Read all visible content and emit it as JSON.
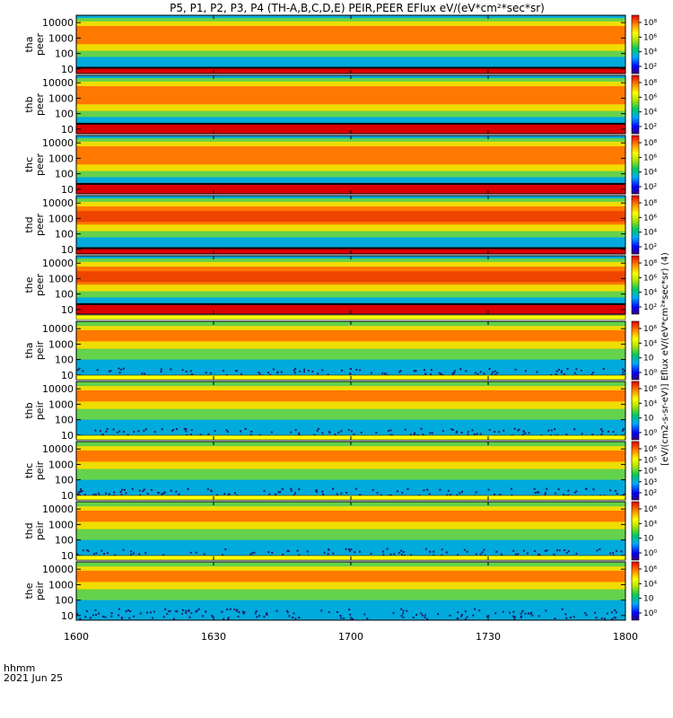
{
  "title": "P5, P1, P2, P3, P4 (TH-A,B,C,D,E) PEIR,PEER EFlux eV/(eV*cm²*sec*sr)",
  "time_axis": {
    "label": "hhmm",
    "date": "2021 Jun 25",
    "ticks": [
      "1600",
      "1630",
      "1700",
      "1730",
      "1800"
    ]
  },
  "colorbar_label": "[eV/(cm2-s-sr-eV)] Eflux eV/(eV*cm²*sec*sr) (4)",
  "colors": {
    "band_high": "#dc0000",
    "band_mid": "#ff7800",
    "band_lowmid": "#f0dc00",
    "band_low": "#64d24b",
    "band_bg": "#00aadc",
    "noise": "#1e1e64"
  },
  "chart_data": [
    {
      "type": "heatmap",
      "probe": "tha",
      "species": "peer",
      "ylabel": [
        "tha",
        "peer"
      ],
      "yticks": [
        "10000",
        "1000",
        "100",
        "10"
      ],
      "colorbar_ticks": [
        "10⁸",
        "10⁶",
        "10⁴",
        "10²"
      ],
      "ylim": [
        5,
        30000
      ],
      "y_scale": "log",
      "xlim": [
        "1600",
        "1800"
      ]
    },
    {
      "type": "heatmap",
      "probe": "thb",
      "species": "peer",
      "ylabel": [
        "thb",
        "peer"
      ],
      "yticks": [
        "10000",
        "1000",
        "100",
        "10"
      ],
      "colorbar_ticks": [
        "10⁸",
        "10⁶",
        "10⁴",
        "10²"
      ],
      "ylim": [
        5,
        30000
      ],
      "y_scale": "log",
      "xlim": [
        "1600",
        "1800"
      ]
    },
    {
      "type": "heatmap",
      "probe": "thc",
      "species": "peer",
      "ylabel": [
        "thc",
        "peer"
      ],
      "yticks": [
        "10000",
        "1000",
        "100",
        "10"
      ],
      "colorbar_ticks": [
        "10⁸",
        "10⁶",
        "10⁴",
        "10²"
      ],
      "ylim": [
        5,
        30000
      ],
      "y_scale": "log",
      "xlim": [
        "1600",
        "1800"
      ]
    },
    {
      "type": "heatmap",
      "probe": "thd",
      "species": "peer",
      "ylabel": [
        "thd",
        "peer"
      ],
      "yticks": [
        "10000",
        "1000",
        "100",
        "10"
      ],
      "colorbar_ticks": [
        "10⁸",
        "10⁶",
        "10⁴",
        "10²"
      ],
      "ylim": [
        5,
        30000
      ],
      "y_scale": "log",
      "xlim": [
        "1600",
        "1800"
      ]
    },
    {
      "type": "heatmap",
      "probe": "the",
      "species": "peer",
      "ylabel": [
        "the",
        "peer"
      ],
      "yticks": [
        "10000",
        "1000",
        "100",
        "10"
      ],
      "colorbar_ticks": [
        "10⁸",
        "10⁶",
        "10⁴",
        "10²"
      ],
      "ylim": [
        5,
        30000
      ],
      "y_scale": "log",
      "xlim": [
        "1600",
        "1800"
      ]
    },
    {
      "type": "heatmap",
      "probe": "tha",
      "species": "peir",
      "ylabel": [
        "tha",
        "peir"
      ],
      "yticks": [
        "10000",
        "1000",
        "100",
        "10"
      ],
      "colorbar_ticks": [
        "10⁶",
        "10⁴",
        "10⁲",
        "10⁰"
      ],
      "ylim": [
        5,
        30000
      ],
      "y_scale": "log",
      "xlim": [
        "1600",
        "1800"
      ]
    },
    {
      "type": "heatmap",
      "probe": "thb",
      "species": "peir",
      "ylabel": [
        "thb",
        "peir"
      ],
      "yticks": [
        "10000",
        "1000",
        "100",
        "10"
      ],
      "colorbar_ticks": [
        "10⁶",
        "10⁴",
        "10⁲",
        "10⁰"
      ],
      "ylim": [
        5,
        30000
      ],
      "y_scale": "log",
      "xlim": [
        "1600",
        "1800"
      ]
    },
    {
      "type": "heatmap",
      "probe": "thc",
      "species": "peir",
      "ylabel": [
        "thc",
        "peir"
      ],
      "yticks": [
        "10000",
        "1000",
        "100",
        "10"
      ],
      "colorbar_ticks": [
        "10⁶",
        "10⁵",
        "10⁴",
        "10³",
        "10²"
      ],
      "ylim": [
        5,
        30000
      ],
      "y_scale": "log",
      "xlim": [
        "1600",
        "1800"
      ]
    },
    {
      "type": "heatmap",
      "probe": "thd",
      "species": "peir",
      "ylabel": [
        "thd",
        "peir"
      ],
      "yticks": [
        "10000",
        "1000",
        "100",
        "10"
      ],
      "colorbar_ticks": [
        "10⁶",
        "10⁴",
        "10⁲",
        "10⁰"
      ],
      "ylim": [
        5,
        30000
      ],
      "y_scale": "log",
      "xlim": [
        "1600",
        "1800"
      ]
    },
    {
      "type": "heatmap",
      "probe": "the",
      "species": "peir",
      "ylabel": [
        "the",
        "peir"
      ],
      "yticks": [
        "10000",
        "1000",
        "100",
        "10"
      ],
      "colorbar_ticks": [
        "10⁶",
        "10⁴",
        "10⁲",
        "10⁰"
      ],
      "ylim": [
        5,
        30000
      ],
      "y_scale": "log",
      "xlim": [
        "1600",
        "1800"
      ]
    }
  ]
}
